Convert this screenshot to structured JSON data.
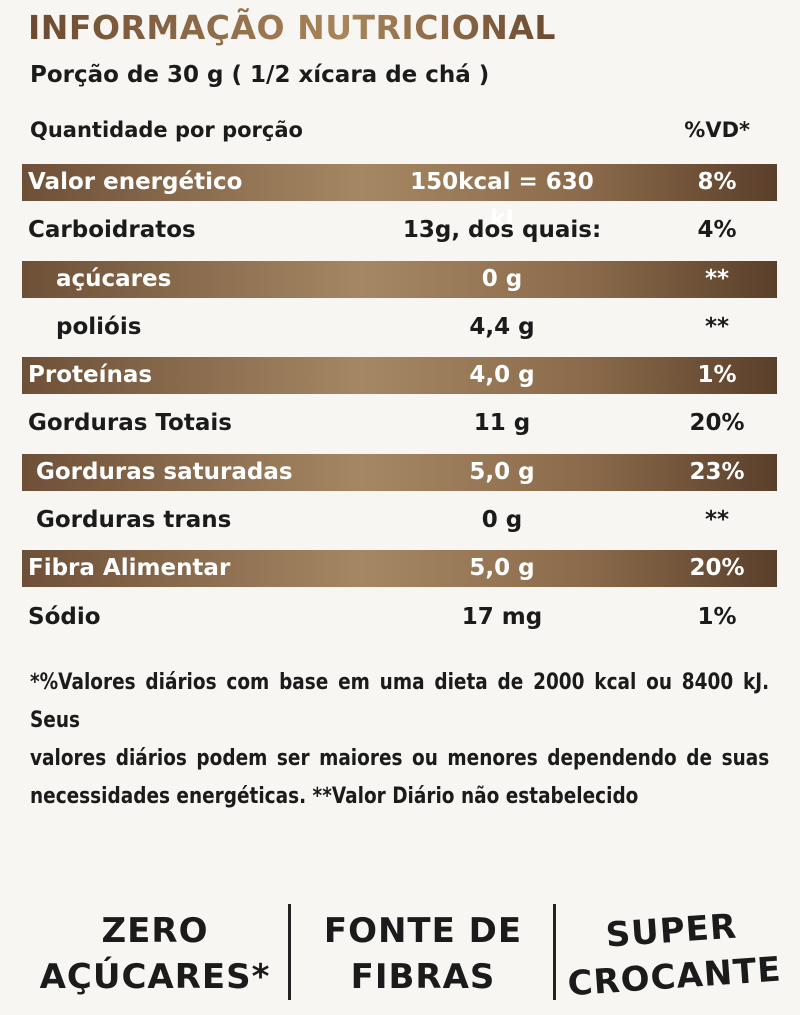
{
  "title": "INFORMAÇÃO NUTRICIONAL",
  "serving": "Porção de 30 g ( 1/2 xícara de chá )",
  "header": {
    "label": "Quantidade por porção",
    "vd": "%VD*"
  },
  "rows": [
    {
      "label": "Valor energético",
      "amount": "150kcal = 630 kJ",
      "vd": "8%",
      "shaded": true,
      "sub": 0
    },
    {
      "label": "Carboidratos",
      "amount": "13g, dos quais:",
      "vd": "4%",
      "shaded": false,
      "sub": 0
    },
    {
      "label": "açúcares",
      "amount": "0 g",
      "vd": "**",
      "shaded": true,
      "sub": 2
    },
    {
      "label": "poliόis",
      "amount": "4,4 g",
      "vd": "**",
      "shaded": false,
      "sub": 2
    },
    {
      "label": "Proteínas",
      "amount": "4,0 g",
      "vd": "1%",
      "shaded": true,
      "sub": 0
    },
    {
      "label": "Gorduras Totais",
      "amount": "11 g",
      "vd": "20%",
      "shaded": false,
      "sub": 0
    },
    {
      "label": "Gorduras saturadas",
      "amount": "5,0 g",
      "vd": "23%",
      "shaded": true,
      "sub": 1
    },
    {
      "label": "Gorduras trans",
      "amount": "0 g",
      "vd": "**",
      "shaded": false,
      "sub": 1
    },
    {
      "label": "Fibra Alimentar",
      "amount": "5,0 g",
      "vd": "20%",
      "shaded": true,
      "sub": 0
    },
    {
      "label": "Sódio",
      "amount": "17 mg",
      "vd": "1%",
      "shaded": false,
      "sub": 0
    }
  ],
  "footnote": [
    "*%Valores diários com base em uma dieta de 2000 kcal ou 8400 kJ. Seus",
    "valores diários podem ser maiores ou menores dependendo de suas",
    "necessidades energéticas. **Valor Diário não estabelecido"
  ],
  "badges": [
    [
      "ZERO",
      "AÇÚCARES*"
    ],
    [
      "FONTE DE",
      "FIBRAS"
    ],
    [
      "SUPER",
      "CROCANTE"
    ]
  ]
}
